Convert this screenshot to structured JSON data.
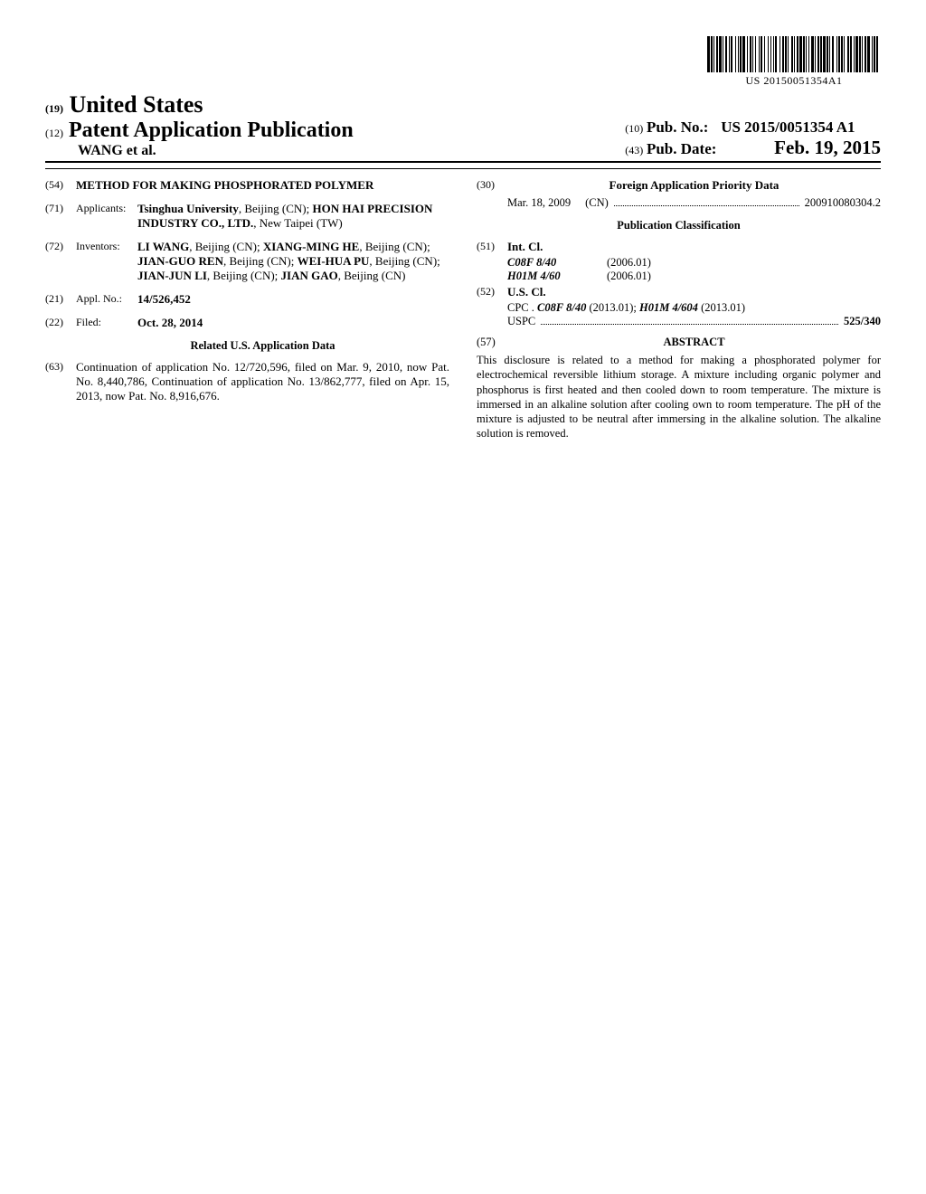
{
  "barcode": {
    "number": "US 20150051354A1"
  },
  "header": {
    "country_num": "(19)",
    "country": "United States",
    "pubtype_num": "(12)",
    "pubtype": "Patent Application Publication",
    "authors": "WANG et al.",
    "pubno_num": "(10)",
    "pubno_label": "Pub. No.:",
    "pubno": "US 2015/0051354 A1",
    "pubdate_num": "(43)",
    "pubdate_label": "Pub. Date:",
    "pubdate": "Feb. 19, 2015"
  },
  "left": {
    "title_num": "(54)",
    "title": "METHOD FOR MAKING PHOSPHORATED POLYMER",
    "applicants_num": "(71)",
    "applicants_label": "Applicants:",
    "applicants": [
      {
        "name": "Tsinghua University",
        "loc": ", Beijing (CN); "
      },
      {
        "name": "HON HAI PRECISION INDUSTRY CO., LTD.",
        "loc": ", New Taipei (TW)"
      }
    ],
    "inventors_num": "(72)",
    "inventors_label": "Inventors:",
    "inventors": [
      {
        "name": "LI WANG",
        "loc": ", Beijing (CN); "
      },
      {
        "name": "XIANG-MING HE",
        "loc": ", Beijing (CN); "
      },
      {
        "name": "JIAN-GUO REN",
        "loc": ", Beijing (CN); "
      },
      {
        "name": "WEI-HUA PU",
        "loc": ", Beijing (CN); "
      },
      {
        "name": "JIAN-JUN LI",
        "loc": ", Beijing (CN); "
      },
      {
        "name": "JIAN GAO",
        "loc": ", Beijing (CN)"
      }
    ],
    "applno_num": "(21)",
    "applno_label": "Appl. No.:",
    "applno": "14/526,452",
    "filed_num": "(22)",
    "filed_label": "Filed:",
    "filed": "Oct. 28, 2014",
    "related_head": "Related U.S. Application Data",
    "cont_num": "(63)",
    "cont": "Continuation of application No. 12/720,596, filed on Mar. 9, 2010, now Pat. No. 8,440,786, Continuation of application No. 13/862,777, filed on Apr. 15, 2013, now Pat. No. 8,916,676."
  },
  "right": {
    "foreign_num": "(30)",
    "foreign_head": "Foreign Application Priority Data",
    "foreign_date": "Mar. 18, 2009",
    "foreign_country": "(CN)",
    "foreign_appno": "200910080304.2",
    "pubclass_head": "Publication Classification",
    "intcl_num": "(51)",
    "intcl_label": "Int. Cl.",
    "intcl": [
      {
        "code": "C08F 8/40",
        "ver": "(2006.01)"
      },
      {
        "code": "H01M 4/60",
        "ver": "(2006.01)"
      }
    ],
    "uscl_num": "(52)",
    "uscl_label": "U.S. Cl.",
    "cpc_prefix": "CPC . ",
    "cpc": [
      {
        "code": "C08F 8/40",
        "ver": " (2013.01); "
      },
      {
        "code": "H01M 4/604",
        "ver": " (2013.01)"
      }
    ],
    "uspc_label": "USPC",
    "uspc": "525/340",
    "abstract_num": "(57)",
    "abstract_label": "ABSTRACT",
    "abstract": "This disclosure is related to a method for making a phosphorated polymer for electrochemical reversible lithium storage. A mixture including organic polymer and phosphorus is first heated and then cooled down to room temperature. The mixture is immersed in an alkaline solution after cooling own to room temperature. The pH of the mixture is adjusted to be neutral after immersing in the alkaline solution. The alkaline solution is removed."
  },
  "barcode_pattern": [
    3,
    1,
    2,
    1,
    1,
    2,
    2,
    1,
    3,
    1,
    1,
    2,
    2,
    2,
    1,
    1,
    2,
    3,
    1,
    2,
    1,
    1,
    2,
    1,
    3,
    2,
    1,
    2,
    2,
    1,
    1,
    2,
    1,
    3,
    1,
    1,
    2,
    2,
    1,
    3,
    1,
    2,
    1,
    2,
    1,
    1,
    2,
    3,
    1,
    2,
    2,
    1,
    2,
    1,
    1,
    3,
    2,
    1,
    1,
    2,
    2,
    1,
    3,
    1,
    2,
    1,
    1,
    2,
    1,
    2,
    3,
    1,
    1,
    2,
    2,
    1,
    2,
    1,
    3,
    1,
    2,
    1,
    1,
    2,
    2,
    3,
    1,
    1,
    2,
    1,
    2,
    1,
    1,
    3,
    2,
    1,
    2,
    2,
    1,
    1,
    3,
    1,
    2,
    1,
    1,
    2,
    2,
    1,
    3,
    2,
    1,
    1,
    2,
    1,
    2,
    3
  ]
}
